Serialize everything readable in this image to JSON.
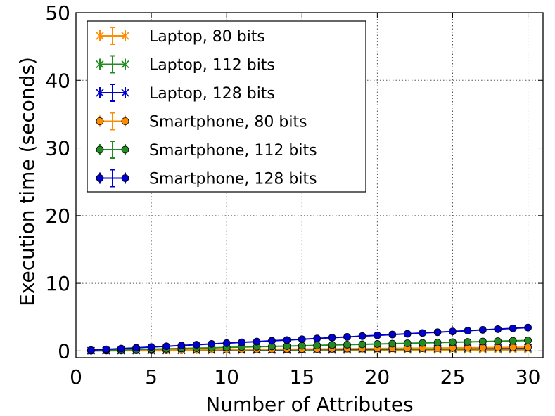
{
  "chart_data": {
    "type": "line",
    "title": "",
    "xlabel": "Number of Attributes",
    "ylabel": "Execution time (seconds)",
    "xlim": [
      0,
      31
    ],
    "ylim": [
      -1,
      50
    ],
    "xticks": [
      0,
      5,
      10,
      15,
      20,
      25,
      30
    ],
    "yticks": [
      0,
      10,
      20,
      30,
      40,
      50
    ],
    "grid": true,
    "legend_position": "top-left",
    "x": [
      1,
      2,
      3,
      4,
      5,
      6,
      7,
      8,
      9,
      10,
      11,
      12,
      13,
      14,
      15,
      16,
      17,
      18,
      19,
      20,
      21,
      22,
      23,
      24,
      25,
      26,
      27,
      28,
      29,
      30
    ],
    "series": [
      {
        "name": "Laptop, 80 bits",
        "color": "#ff8c00",
        "marker": "x",
        "values": [
          0.01,
          0.01,
          0.02,
          0.02,
          0.03,
          0.03,
          0.04,
          0.04,
          0.05,
          0.05,
          0.06,
          0.06,
          0.07,
          0.07,
          0.08,
          0.08,
          0.09,
          0.09,
          0.1,
          0.1,
          0.11,
          0.11,
          0.12,
          0.12,
          0.13,
          0.13,
          0.14,
          0.14,
          0.15,
          0.15
        ]
      },
      {
        "name": "Laptop, 112 bits",
        "color": "#228b22",
        "marker": "x",
        "values": [
          0.02,
          0.03,
          0.04,
          0.05,
          0.06,
          0.07,
          0.08,
          0.09,
          0.1,
          0.11,
          0.12,
          0.13,
          0.14,
          0.15,
          0.16,
          0.17,
          0.18,
          0.19,
          0.2,
          0.21,
          0.22,
          0.23,
          0.24,
          0.25,
          0.26,
          0.27,
          0.28,
          0.29,
          0.3,
          0.31
        ]
      },
      {
        "name": "Laptop, 128 bits",
        "color": "#0000cd",
        "marker": "x",
        "values": [
          0.03,
          0.04,
          0.06,
          0.08,
          0.09,
          0.11,
          0.12,
          0.14,
          0.15,
          0.17,
          0.18,
          0.2,
          0.21,
          0.23,
          0.24,
          0.26,
          0.27,
          0.29,
          0.3,
          0.32,
          0.33,
          0.35,
          0.36,
          0.38,
          0.39,
          0.41,
          0.42,
          0.44,
          0.45,
          0.47
        ]
      },
      {
        "name": "Smartphone, 80 bits",
        "color": "#ff8c00",
        "marker": "o",
        "values": [
          0.02,
          0.04,
          0.06,
          0.08,
          0.1,
          0.11,
          0.13,
          0.15,
          0.17,
          0.19,
          0.2,
          0.22,
          0.24,
          0.26,
          0.27,
          0.29,
          0.31,
          0.33,
          0.34,
          0.36,
          0.38,
          0.4,
          0.41,
          0.43,
          0.45,
          0.47,
          0.48,
          0.5,
          0.52,
          0.54
        ]
      },
      {
        "name": "Smartphone, 112 bits",
        "color": "#228b22",
        "marker": "o",
        "values": [
          0.05,
          0.1,
          0.15,
          0.21,
          0.26,
          0.31,
          0.36,
          0.41,
          0.46,
          0.52,
          0.57,
          0.62,
          0.67,
          0.72,
          0.77,
          0.82,
          0.88,
          0.93,
          0.98,
          1.03,
          1.08,
          1.13,
          1.18,
          1.24,
          1.29,
          1.34,
          1.39,
          1.44,
          1.49,
          1.55
        ]
      },
      {
        "name": "Smartphone, 128 bits",
        "color": "#0000cd",
        "marker": "o",
        "values": [
          0.12,
          0.23,
          0.35,
          0.46,
          0.58,
          0.69,
          0.81,
          0.92,
          1.04,
          1.15,
          1.27,
          1.38,
          1.5,
          1.61,
          1.73,
          1.84,
          1.96,
          2.07,
          2.19,
          2.3,
          2.42,
          2.53,
          2.65,
          2.76,
          2.88,
          2.99,
          3.11,
          3.22,
          3.34,
          3.45
        ]
      }
    ]
  }
}
